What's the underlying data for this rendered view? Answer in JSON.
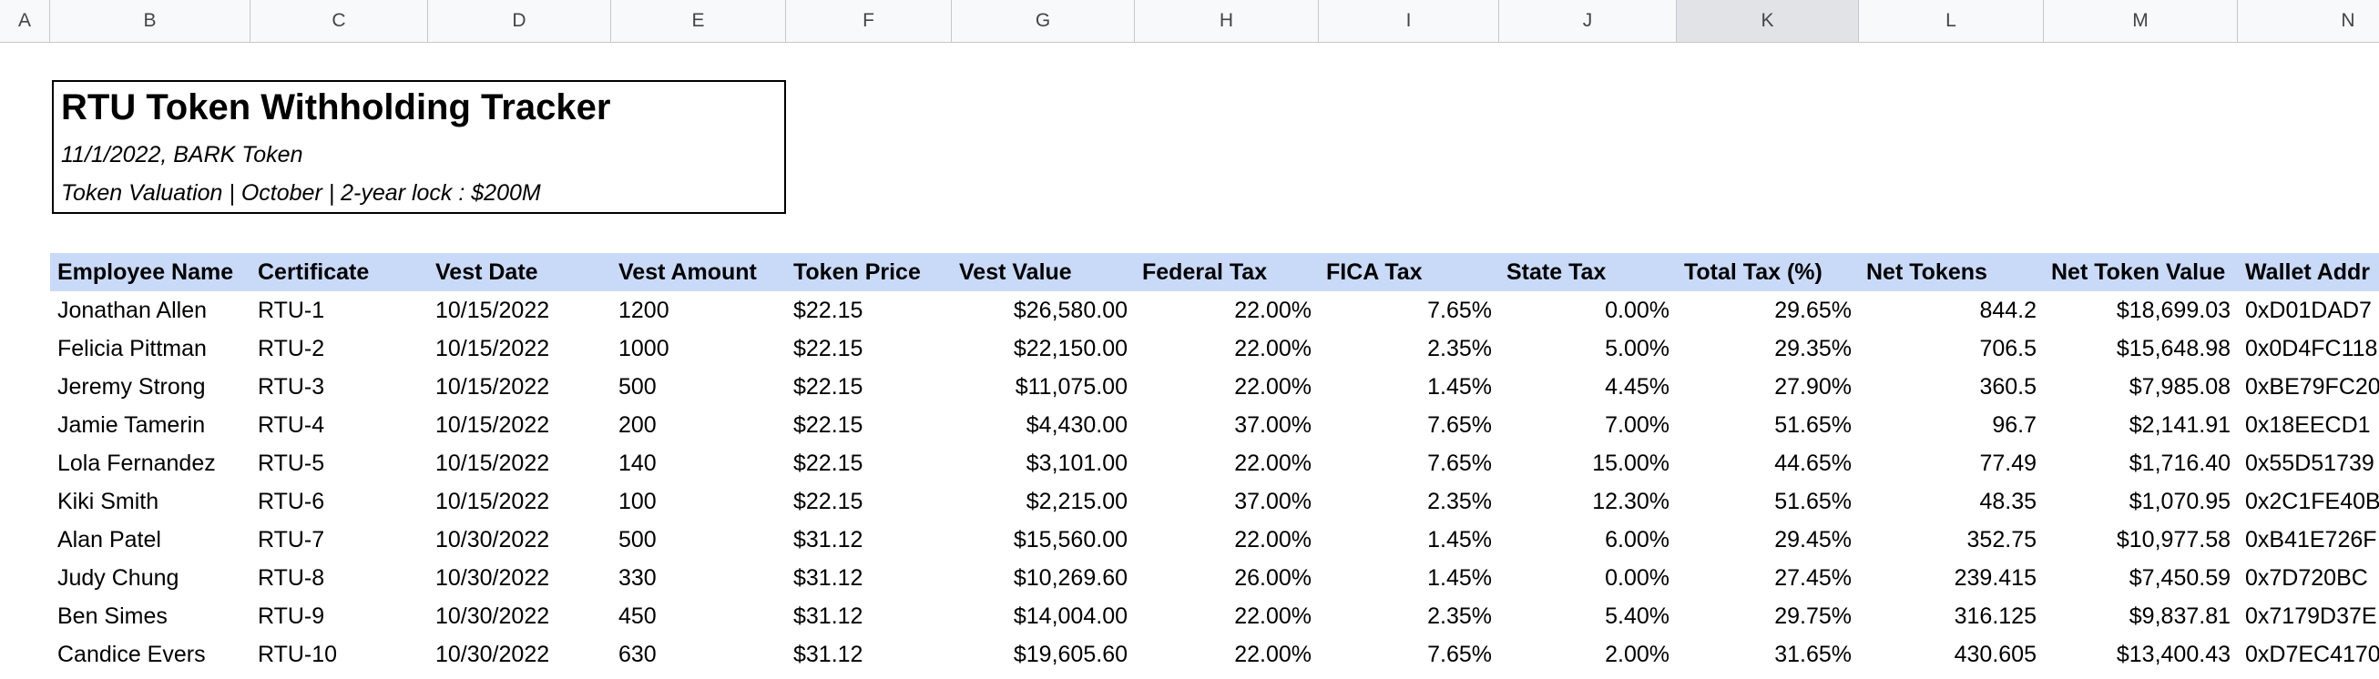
{
  "sheet": {
    "columns": [
      "A",
      "B",
      "C",
      "D",
      "E",
      "F",
      "G",
      "H",
      "I",
      "J",
      "K",
      "L",
      "M",
      "N"
    ],
    "title": "RTU Token Withholding Tracker",
    "subtitle": "11/1/2022, BARK Token",
    "valuation": "Token Valuation | October | 2-year lock : $200M",
    "table": {
      "header": [
        "Employee Name",
        "Certificate",
        "Vest Date",
        "Vest Amount",
        "Token Price",
        "Vest Value",
        "Federal Tax",
        "FICA Tax",
        "State Tax",
        "Total Tax (%)",
        "Net Tokens",
        "Net Token Value",
        "Wallet Addr"
      ],
      "rows": [
        [
          "Jonathan Allen",
          "RTU-1",
          "10/15/2022",
          "1200",
          "$22.15",
          "$26,580.00",
          "22.00%",
          "7.65%",
          "0.00%",
          "29.65%",
          "844.2",
          "$18,699.03",
          "0xD01DAD7"
        ],
        [
          "Felicia Pittman",
          "RTU-2",
          "10/15/2022",
          "1000",
          "$22.15",
          "$22,150.00",
          "22.00%",
          "2.35%",
          "5.00%",
          "29.35%",
          "706.5",
          "$15,648.98",
          "0x0D4FC118"
        ],
        [
          "Jeremy Strong",
          "RTU-3",
          "10/15/2022",
          "500",
          "$22.15",
          "$11,075.00",
          "22.00%",
          "1.45%",
          "4.45%",
          "27.90%",
          "360.5",
          "$7,985.08",
          "0xBE79FC20"
        ],
        [
          "Jamie Tamerin",
          "RTU-4",
          "10/15/2022",
          "200",
          "$22.15",
          "$4,430.00",
          "37.00%",
          "7.65%",
          "7.00%",
          "51.65%",
          "96.7",
          "$2,141.91",
          "0x18EECD1"
        ],
        [
          "Lola Fernandez",
          "RTU-5",
          "10/15/2022",
          "140",
          "$22.15",
          "$3,101.00",
          "22.00%",
          "7.65%",
          "15.00%",
          "44.65%",
          "77.49",
          "$1,716.40",
          "0x55D51739"
        ],
        [
          "Kiki Smith",
          "RTU-6",
          "10/15/2022",
          "100",
          "$22.15",
          "$2,215.00",
          "37.00%",
          "2.35%",
          "12.30%",
          "51.65%",
          "48.35",
          "$1,070.95",
          "0x2C1FE40B"
        ],
        [
          "Alan Patel",
          "RTU-7",
          "10/30/2022",
          "500",
          "$31.12",
          "$15,560.00",
          "22.00%",
          "1.45%",
          "6.00%",
          "29.45%",
          "352.75",
          "$10,977.58",
          "0xB41E726F"
        ],
        [
          "Judy Chung",
          "RTU-8",
          "10/30/2022",
          "330",
          "$31.12",
          "$10,269.60",
          "26.00%",
          "1.45%",
          "0.00%",
          "27.45%",
          "239.415",
          "$7,450.59",
          "0x7D720BC"
        ],
        [
          "Ben Simes",
          "RTU-9",
          "10/30/2022",
          "450",
          "$31.12",
          "$14,004.00",
          "22.00%",
          "2.35%",
          "5.40%",
          "29.75%",
          "316.125",
          "$9,837.81",
          "0x7179D37E"
        ],
        [
          "Candice Evers",
          "RTU-10",
          "10/30/2022",
          "630",
          "$31.12",
          "$19,605.60",
          "22.00%",
          "7.65%",
          "2.00%",
          "31.65%",
          "430.605",
          "$13,400.43",
          "0xD7EC4170"
        ]
      ]
    }
  }
}
